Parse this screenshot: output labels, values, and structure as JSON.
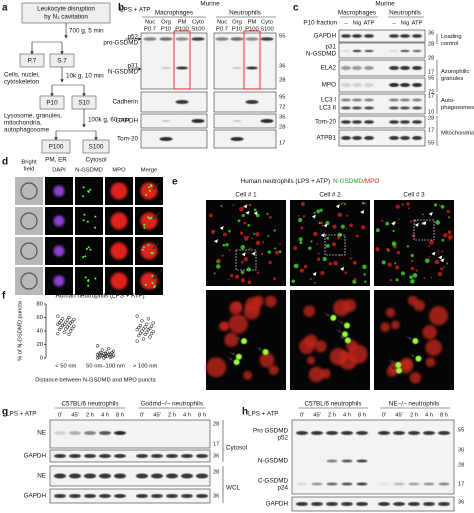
{
  "panel_a": {
    "letter": "a",
    "start": [
      "Leukocyte disruption",
      "by N₂ cavitation"
    ],
    "step1": "700 g, 5 min",
    "p7": "P.7",
    "s7": "S.7",
    "p7_desc": [
      "Cells, nuclei,",
      "cytoskeleton"
    ],
    "step2": "10k g, 10 min",
    "p10": "P10",
    "s10": "S10",
    "p10_desc": [
      "Lysosome, granules,",
      "mitochondria,",
      "autophagosome"
    ],
    "step3": "100k g, 60 min",
    "p100": "P100",
    "p100_desc": "PM, ER",
    "s100": "S100",
    "s100_desc": "Cytosol"
  },
  "panel_b": {
    "letter": "b",
    "murine": "Murine",
    "groups": [
      "Macrophages",
      "Neutrophils"
    ],
    "lps": "LPS + ATP",
    "fractions": [
      "Nuc",
      "Org",
      "PM",
      "Cyto"
    ],
    "codes": [
      "P0.7",
      "P10",
      "P100",
      "S100"
    ],
    "labels": [
      "p52",
      "pro-GSDMD",
      "p31",
      "N-GSDMD",
      "Cadherin",
      "GAPDH",
      "Tom-20"
    ],
    "mw": [
      "55",
      "36",
      "28",
      "95",
      "72",
      "36",
      "28",
      "17"
    ]
  },
  "panel_c": {
    "letter": "c",
    "murine": "Murine",
    "groups": [
      "Macrophages",
      "Neutrophils"
    ],
    "fraction": "P10 fraction",
    "treatments": [
      "–",
      "Nig",
      "ATP"
    ],
    "labels": [
      "GAPDH",
      "p31",
      "N-GSDMD",
      "ELA2",
      "MPO",
      "LC3 I",
      "LC3 II",
      "Tom-20",
      "ATPB1"
    ],
    "mw": [
      "36",
      "28",
      "28",
      "17",
      "55",
      "72",
      "17",
      "10",
      "28",
      "17",
      "55"
    ],
    "groups_right": [
      [
        "Loading",
        "control"
      ],
      [
        "Azurophilic",
        "granules"
      ],
      [
        "Auto-",
        "phagosomes"
      ],
      [
        "Mitochondria"
      ]
    ]
  },
  "panel_d": {
    "letter": "d",
    "columns": [
      [
        "Bright",
        "field"
      ],
      [
        "DAPI"
      ],
      [
        "N-GSDMD"
      ],
      [
        "MPO"
      ],
      [
        "Merge"
      ]
    ]
  },
  "panel_e": {
    "letter": "e",
    "title": "Human neutrophils (LPS + ATP)",
    "stain": [
      "N-GSDMD",
      "/MPO"
    ],
    "cells": [
      "Cell # 1",
      "Cell # 2",
      "Cell # 3"
    ]
  },
  "chart_data": {
    "type": "strip",
    "letter": "f",
    "title": "Human neutrophils (LPS + ATP)",
    "y_label": "% of N-GSDMD puncta",
    "x_label": "Distance between N-GSDMD and MPO puncta",
    "categories": [
      "< 50 nm",
      "50 nm–100 nm",
      "> 100 nm"
    ],
    "series": [
      {
        "name": "< 50 nm",
        "values": [
          62,
          60,
          58,
          57,
          56,
          55,
          54,
          53,
          52,
          52,
          50,
          50,
          49,
          48,
          47,
          46,
          45,
          44,
          43,
          42,
          40,
          38,
          36,
          35
        ]
      },
      {
        "name": "50 nm–100 nm",
        "values": [
          18,
          14,
          12,
          10,
          9,
          8,
          8,
          7,
          7,
          6,
          6,
          5,
          5,
          4,
          4,
          3,
          3,
          2,
          2,
          1,
          1,
          0,
          0
        ]
      },
      {
        "name": "> 100 nm",
        "values": [
          62,
          58,
          55,
          52,
          50,
          48,
          47,
          46,
          45,
          44,
          43,
          42,
          42,
          40,
          39,
          38,
          37,
          36,
          35,
          33,
          31,
          28,
          25
        ]
      }
    ],
    "ylim": [
      0,
      80
    ],
    "yticks": [
      0,
      20,
      40,
      60,
      80
    ],
    "color": "#000000"
  },
  "panel_g": {
    "letter": "g",
    "groups": [
      "C57BL/6 neutrophils",
      "Gsdmd−/− neutrophils"
    ],
    "lps": "LPS + ATP",
    "times": [
      "0'",
      "45'",
      "2 h",
      "4 h",
      "8 h"
    ],
    "labels": [
      "NE",
      "GAPDH",
      "NE",
      "GAPDH"
    ],
    "mw": [
      "28",
      "17",
      "36",
      "28",
      "36"
    ],
    "fractions": [
      "Cytosol",
      "WCL"
    ]
  },
  "panel_h": {
    "letter": "h",
    "groups": [
      "C57BL/6 neutrophils",
      "NE−/− neutrophils"
    ],
    "lps": "LPS + ATP",
    "times": [
      "0'",
      "45'",
      "2 h",
      "4 h",
      "8 h"
    ],
    "labels": [
      "Pro GSDMD",
      "p52",
      "N-GSDMD",
      "C-GSDMD",
      "p24",
      "GAPDH"
    ],
    "mw": [
      "55",
      "36",
      "28",
      "17",
      "36"
    ]
  }
}
